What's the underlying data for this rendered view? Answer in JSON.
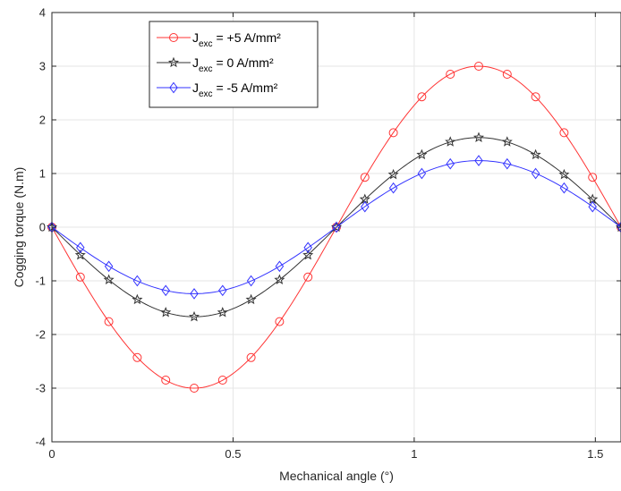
{
  "chart_data": {
    "type": "line",
    "title": "",
    "xlabel": "Mechanical angle (°)",
    "ylabel": "Cogging torque (N.m)",
    "xlim": [
      0,
      1.5708
    ],
    "ylim": [
      -4,
      4
    ],
    "xticks": [
      0,
      0.5,
      1,
      1.5
    ],
    "xtick_labels": [
      "0",
      "0.5",
      "1",
      "1.5"
    ],
    "yticks": [
      -4,
      -3,
      -2,
      -1,
      0,
      1,
      2,
      3,
      4
    ],
    "ytick_labels": [
      "-4",
      "-3",
      "-2",
      "-1",
      "0",
      "1",
      "2",
      "3",
      "4"
    ],
    "grid": true,
    "legend_position": "top-left",
    "series": [
      {
        "name": "J_exc = +5 A/mm²",
        "legend_main": "J",
        "legend_sub": "exc",
        "legend_rest": " = +5 A/mm²",
        "color": "#ff3333",
        "marker": "circle",
        "amplitude": 3.0,
        "marker_x": [
          0,
          0.0785,
          0.1571,
          0.2356,
          0.3142,
          0.3927,
          0.4712,
          0.5498,
          0.6283,
          0.7069,
          0.7854,
          0.8639,
          0.9425,
          1.021,
          1.0996,
          1.1781,
          1.2566,
          1.3352,
          1.4137,
          1.4923,
          1.5708
        ],
        "marker_y": [
          0,
          -0.93,
          -1.76,
          -2.43,
          -2.85,
          -3.0,
          -2.85,
          -2.43,
          -1.76,
          -0.93,
          0,
          0.93,
          1.76,
          2.43,
          2.85,
          3.0,
          2.85,
          2.43,
          1.76,
          0.93,
          0
        ]
      },
      {
        "name": "J_exc = 0 A/mm²",
        "legend_main": "J",
        "legend_sub": "exc",
        "legend_rest": " = 0 A/mm²",
        "color": "#333333",
        "marker": "star",
        "amplitude": 1.67,
        "marker_x": [
          0,
          0.0785,
          0.1571,
          0.2356,
          0.3142,
          0.3927,
          0.4712,
          0.5498,
          0.6283,
          0.7069,
          0.7854,
          0.8639,
          0.9425,
          1.021,
          1.0996,
          1.1781,
          1.2566,
          1.3352,
          1.4137,
          1.4923,
          1.5708
        ],
        "marker_y": [
          0,
          -0.52,
          -0.98,
          -1.35,
          -1.59,
          -1.67,
          -1.59,
          -1.35,
          -0.98,
          -0.52,
          0,
          0.52,
          0.98,
          1.35,
          1.59,
          1.67,
          1.59,
          1.35,
          0.98,
          0.52,
          0
        ]
      },
      {
        "name": "J_exc = -5 A/mm²",
        "legend_main": "J",
        "legend_sub": "exc",
        "legend_rest": " = -5 A/mm²",
        "color": "#3333ff",
        "marker": "diamond",
        "amplitude": 1.24,
        "marker_x": [
          0,
          0.0785,
          0.1571,
          0.2356,
          0.3142,
          0.3927,
          0.4712,
          0.5498,
          0.6283,
          0.7069,
          0.7854,
          0.8639,
          0.9425,
          1.021,
          1.0996,
          1.1781,
          1.2566,
          1.3352,
          1.4137,
          1.4923,
          1.5708
        ],
        "marker_y": [
          0,
          -0.38,
          -0.73,
          -1.0,
          -1.18,
          -1.24,
          -1.18,
          -1.0,
          -0.73,
          -0.38,
          0,
          0.38,
          0.73,
          1.0,
          1.18,
          1.24,
          1.18,
          1.0,
          0.73,
          0.38,
          0
        ]
      }
    ]
  }
}
